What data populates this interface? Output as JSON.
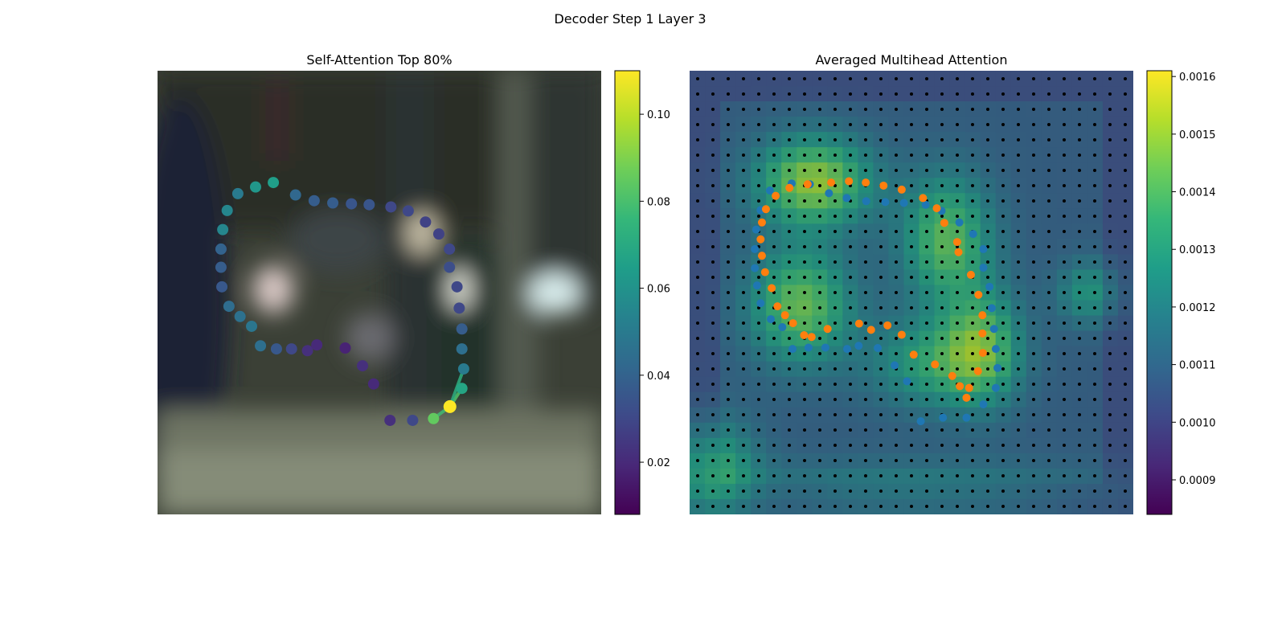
{
  "figure": {
    "title": "Decoder Step 1 Layer 3"
  },
  "chart_data": [
    {
      "type": "scatter",
      "title": "Self-Attention Top 80%",
      "xlabel": "",
      "ylabel": "",
      "axes_visible": false,
      "background": "blurred photo",
      "xlim": [
        0,
        1
      ],
      "ylim": [
        0,
        1
      ],
      "colormap": "viridis",
      "colorbar": {
        "range": [
          0.008,
          0.11
        ],
        "ticks": [
          0.02,
          0.04,
          0.06,
          0.08,
          0.1
        ],
        "tick_labels": [
          "0.02",
          "0.04",
          "0.06",
          "0.08",
          "0.10"
        ]
      },
      "query_point": {
        "x": 0.659,
        "y": 0.757,
        "value": 0.11
      },
      "connection_lines_from_query": [
        0.69,
        0.72,
        0.625
      ],
      "points": [
        {
          "x": 0.524,
          "y": 0.788,
          "value": 0.022
        },
        {
          "x": 0.575,
          "y": 0.788,
          "value": 0.03
        },
        {
          "x": 0.622,
          "y": 0.784,
          "value": 0.085
        },
        {
          "x": 0.686,
          "y": 0.716,
          "value": 0.068
        },
        {
          "x": 0.69,
          "y": 0.672,
          "value": 0.05
        },
        {
          "x": 0.686,
          "y": 0.627,
          "value": 0.045
        },
        {
          "x": 0.686,
          "y": 0.582,
          "value": 0.038
        },
        {
          "x": 0.68,
          "y": 0.535,
          "value": 0.03
        },
        {
          "x": 0.675,
          "y": 0.487,
          "value": 0.03
        },
        {
          "x": 0.658,
          "y": 0.443,
          "value": 0.032
        },
        {
          "x": 0.658,
          "y": 0.402,
          "value": 0.03
        },
        {
          "x": 0.634,
          "y": 0.368,
          "value": 0.028
        },
        {
          "x": 0.604,
          "y": 0.341,
          "value": 0.028
        },
        {
          "x": 0.565,
          "y": 0.316,
          "value": 0.03
        },
        {
          "x": 0.526,
          "y": 0.307,
          "value": 0.03
        },
        {
          "x": 0.477,
          "y": 0.302,
          "value": 0.035
        },
        {
          "x": 0.437,
          "y": 0.3,
          "value": 0.035
        },
        {
          "x": 0.395,
          "y": 0.298,
          "value": 0.038
        },
        {
          "x": 0.353,
          "y": 0.293,
          "value": 0.038
        },
        {
          "x": 0.311,
          "y": 0.28,
          "value": 0.042
        },
        {
          "x": 0.261,
          "y": 0.252,
          "value": 0.065
        },
        {
          "x": 0.221,
          "y": 0.262,
          "value": 0.062
        },
        {
          "x": 0.181,
          "y": 0.277,
          "value": 0.05
        },
        {
          "x": 0.157,
          "y": 0.315,
          "value": 0.055
        },
        {
          "x": 0.147,
          "y": 0.358,
          "value": 0.055
        },
        {
          "x": 0.143,
          "y": 0.402,
          "value": 0.04
        },
        {
          "x": 0.143,
          "y": 0.443,
          "value": 0.038
        },
        {
          "x": 0.145,
          "y": 0.487,
          "value": 0.036
        },
        {
          "x": 0.161,
          "y": 0.531,
          "value": 0.044
        },
        {
          "x": 0.186,
          "y": 0.554,
          "value": 0.046
        },
        {
          "x": 0.212,
          "y": 0.576,
          "value": 0.048
        },
        {
          "x": 0.232,
          "y": 0.62,
          "value": 0.045
        },
        {
          "x": 0.268,
          "y": 0.627,
          "value": 0.036
        },
        {
          "x": 0.302,
          "y": 0.627,
          "value": 0.03
        },
        {
          "x": 0.338,
          "y": 0.631,
          "value": 0.022
        },
        {
          "x": 0.359,
          "y": 0.618,
          "value": 0.02
        },
        {
          "x": 0.423,
          "y": 0.625,
          "value": 0.018
        },
        {
          "x": 0.462,
          "y": 0.665,
          "value": 0.022
        },
        {
          "x": 0.487,
          "y": 0.706,
          "value": 0.02
        }
      ]
    },
    {
      "type": "heatmap",
      "title": "Averaged Multihead Attention",
      "xlabel": "",
      "ylabel": "",
      "axes_visible": false,
      "xlim": [
        0,
        1
      ],
      "ylim": [
        0,
        1
      ],
      "grid_size": 29,
      "colormap": "viridis",
      "colorbar": {
        "range": [
          0.00084,
          0.00161
        ],
        "ticks": [
          0.0009,
          0.001,
          0.0011,
          0.0012,
          0.0013,
          0.0014,
          0.0015,
          0.0016
        ],
        "tick_labels": [
          "0.0009",
          "0.0010",
          "0.0011",
          "0.0012",
          "0.0013",
          "0.0014",
          "0.0015",
          "0.0016"
        ]
      },
      "heat_blobs": [
        {
          "x": 0.28,
          "y": 0.25,
          "sx": 0.09,
          "sy": 0.07,
          "amp": 0.00042
        },
        {
          "x": 0.58,
          "y": 0.38,
          "sx": 0.07,
          "sy": 0.1,
          "amp": 0.00034
        },
        {
          "x": 0.25,
          "y": 0.53,
          "sx": 0.08,
          "sy": 0.09,
          "amp": 0.00036
        },
        {
          "x": 0.66,
          "y": 0.62,
          "sx": 0.06,
          "sy": 0.09,
          "amp": 0.0003
        },
        {
          "x": 0.55,
          "y": 0.66,
          "sx": 0.1,
          "sy": 0.07,
          "amp": 0.00024
        },
        {
          "x": 0.9,
          "y": 0.5,
          "sx": 0.05,
          "sy": 0.05,
          "amp": 0.0002
        },
        {
          "x": 0.05,
          "y": 0.9,
          "sx": 0.07,
          "sy": 0.08,
          "amp": 0.00026
        },
        {
          "x": 0.5,
          "y": 0.95,
          "sx": 0.3,
          "sy": 0.05,
          "amp": 0.00014
        }
      ],
      "heat_base": 0.00108,
      "series": [
        {
          "name": "",
          "color": "#1f77b4",
          "points": [
            [
              0.521,
              0.79
            ],
            [
              0.571,
              0.782
            ],
            [
              0.624,
              0.782
            ],
            [
              0.662,
              0.752
            ],
            [
              0.69,
              0.715
            ],
            [
              0.694,
              0.67
            ],
            [
              0.69,
              0.627
            ],
            [
              0.686,
              0.582
            ],
            [
              0.681,
              0.535
            ],
            [
              0.676,
              0.487
            ],
            [
              0.662,
              0.444
            ],
            [
              0.662,
              0.402
            ],
            [
              0.639,
              0.368
            ],
            [
              0.608,
              0.342
            ],
            [
              0.568,
              0.316
            ],
            [
              0.532,
              0.302
            ],
            [
              0.483,
              0.298
            ],
            [
              0.441,
              0.296
            ],
            [
              0.398,
              0.294
            ],
            [
              0.354,
              0.287
            ],
            [
              0.314,
              0.276
            ],
            [
              0.271,
              0.256
            ],
            [
              0.23,
              0.254
            ],
            [
              0.181,
              0.27
            ],
            [
              0.16,
              0.314
            ],
            [
              0.15,
              0.358
            ],
            [
              0.147,
              0.402
            ],
            [
              0.147,
              0.445
            ],
            [
              0.152,
              0.484
            ],
            [
              0.16,
              0.524
            ],
            [
              0.183,
              0.56
            ],
            [
              0.209,
              0.578
            ],
            [
              0.232,
              0.627
            ],
            [
              0.268,
              0.624
            ],
            [
              0.306,
              0.624
            ],
            [
              0.355,
              0.627
            ],
            [
              0.381,
              0.62
            ],
            [
              0.424,
              0.625
            ],
            [
              0.462,
              0.664
            ],
            [
              0.49,
              0.7
            ]
          ]
        },
        {
          "name": "",
          "color": "#ff7f0e",
          "points": [
            [
              0.624,
              0.737
            ],
            [
              0.609,
              0.711
            ],
            [
              0.592,
              0.688
            ],
            [
              0.553,
              0.662
            ],
            [
              0.505,
              0.64
            ],
            [
              0.478,
              0.595
            ],
            [
              0.446,
              0.574
            ],
            [
              0.409,
              0.584
            ],
            [
              0.382,
              0.57
            ],
            [
              0.311,
              0.582
            ],
            [
              0.275,
              0.6
            ],
            [
              0.258,
              0.596
            ],
            [
              0.233,
              0.569
            ],
            [
              0.215,
              0.551
            ],
            [
              0.198,
              0.531
            ],
            [
              0.185,
              0.49
            ],
            [
              0.17,
              0.454
            ],
            [
              0.163,
              0.417
            ],
            [
              0.16,
              0.38
            ],
            [
              0.163,
              0.342
            ],
            [
              0.172,
              0.312
            ],
            [
              0.194,
              0.282
            ],
            [
              0.225,
              0.264
            ],
            [
              0.266,
              0.256
            ],
            [
              0.319,
              0.252
            ],
            [
              0.359,
              0.249
            ],
            [
              0.397,
              0.252
            ],
            [
              0.437,
              0.259
            ],
            [
              0.478,
              0.268
            ],
            [
              0.526,
              0.287
            ],
            [
              0.557,
              0.31
            ],
            [
              0.574,
              0.343
            ],
            [
              0.603,
              0.386
            ],
            [
              0.606,
              0.409
            ],
            [
              0.634,
              0.46
            ],
            [
              0.651,
              0.505
            ],
            [
              0.66,
              0.551
            ],
            [
              0.66,
              0.592
            ],
            [
              0.661,
              0.636
            ],
            [
              0.65,
              0.677
            ],
            [
              0.63,
              0.715
            ]
          ]
        }
      ]
    }
  ]
}
